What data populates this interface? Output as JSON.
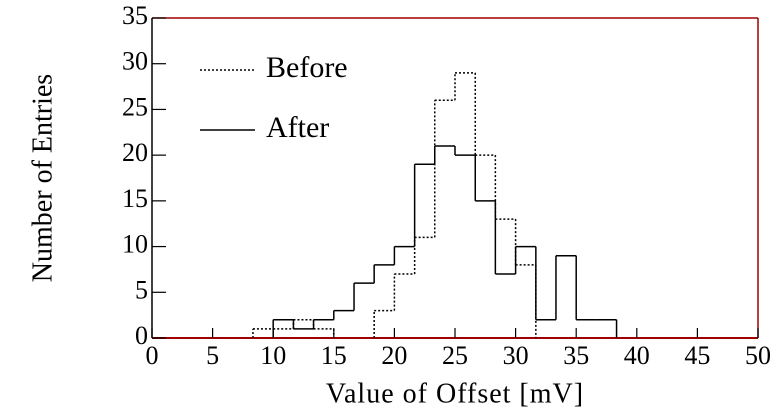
{
  "chart_data": {
    "type": "histogram",
    "y_label": "Number of Entries",
    "x_label": "Value of Offset [mV]",
    "bins": [
      0,
      1.67,
      3.33,
      5,
      6.67,
      8.33,
      10,
      11.67,
      13.33,
      15,
      16.67,
      18.33,
      20,
      21.67,
      23.33,
      25,
      26.67,
      28.33,
      30,
      31.67,
      33.33,
      35,
      36.67,
      38.33,
      40,
      41.67,
      43.33,
      45,
      46.67,
      48.33,
      50
    ],
    "series": [
      {
        "name": "Before",
        "color": "#000000",
        "dash": "dotted",
        "values": [
          0,
          0,
          0,
          0,
          0,
          1,
          1,
          2,
          1,
          0,
          0,
          3,
          7,
          11,
          26,
          29,
          20,
          13,
          8,
          0,
          0,
          0,
          0,
          0,
          0,
          0,
          0,
          0,
          0,
          0
        ]
      },
      {
        "name": "After",
        "color": "#000000",
        "dash": "solid",
        "values": [
          0,
          0,
          0,
          0,
          0,
          0,
          2,
          1,
          2,
          3,
          6,
          8,
          10,
          19,
          21,
          20,
          15,
          7,
          10,
          2,
          9,
          2,
          2,
          0,
          0,
          0,
          0,
          0,
          0,
          0
        ]
      }
    ],
    "xlim": [
      0,
      50
    ],
    "xticks": [
      0,
      5,
      10,
      15,
      20,
      25,
      30,
      35,
      40,
      45,
      50
    ],
    "ylim": [
      0,
      35
    ],
    "yticks": [
      0,
      5,
      10,
      15,
      20,
      25,
      30,
      35
    ],
    "frame_color": "#a00000",
    "legend": "upper left"
  }
}
